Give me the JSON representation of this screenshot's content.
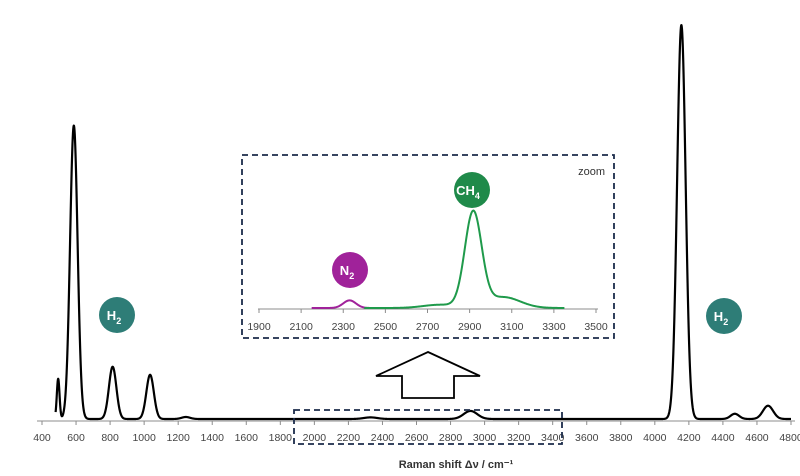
{
  "chart_data": [
    {
      "type": "line",
      "title": "",
      "xlabel": "Raman shift Δν / cm⁻¹",
      "ylabel": "",
      "xlim": [
        400,
        4800
      ],
      "xticks": [
        400,
        600,
        800,
        1000,
        1200,
        1400,
        1600,
        1800,
        2000,
        2200,
        2400,
        2600,
        2800,
        3000,
        3200,
        3400,
        3600,
        3800,
        4000,
        4200,
        4400,
        4600,
        4800
      ],
      "ylim": [
        0,
        1
      ],
      "grid": false,
      "series": [
        {
          "color": "#000000",
          "peaks": [
            {
              "x": 587,
              "y": 0.73,
              "w": 22
            },
            {
              "x": 495,
              "y": 0.1,
              "w": 8
            },
            {
              "x": 815,
              "y": 0.13,
              "w": 22
            },
            {
              "x": 1035,
              "y": 0.11,
              "w": 22
            },
            {
              "x": 1245,
              "y": 0.005,
              "w": 25
            },
            {
              "x": 2330,
              "y": 0.004,
              "w": 40
            },
            {
              "x": 2917,
              "y": 0.02,
              "w": 40
            },
            {
              "x": 4156,
              "y": 0.98,
              "w": 25
            },
            {
              "x": 4470,
              "y": 0.013,
              "w": 25
            },
            {
              "x": 4665,
              "y": 0.033,
              "w": 30
            }
          ]
        }
      ],
      "annotations": [
        {
          "label": "H",
          "sub": "2",
          "color": "#2e7d77"
        },
        {
          "label": "H",
          "sub": "2",
          "color": "#2e7d77"
        }
      ],
      "highlight_range": [
        1880,
        3520
      ]
    },
    {
      "type": "line",
      "title": "",
      "corner_label": "zoom",
      "xlim": [
        1900,
        3500
      ],
      "xticks": [
        1900,
        2100,
        2300,
        2500,
        2700,
        2900,
        3100,
        3300,
        3500
      ],
      "ylim": [
        0,
        1
      ],
      "series": [
        {
          "color": "#a0229a",
          "range": [
            2150,
            2560
          ],
          "peaks": [
            {
              "x": 2330,
              "y": 0.07,
              "w": 30
            }
          ]
        },
        {
          "color": "#1f9a4b",
          "range": [
            2400,
            3350
          ],
          "peaks": [
            {
              "x": 2917,
              "y": 0.87,
              "w": 40
            },
            {
              "x": 3060,
              "y": 0.1,
              "w": 80
            },
            {
              "x": 2760,
              "y": 0.03,
              "w": 80
            }
          ]
        }
      ],
      "annotations": [
        {
          "label": "N",
          "sub": "2",
          "color": "#a0229a"
        },
        {
          "label": "CH",
          "sub": "4",
          "color": "#1f8a4a"
        }
      ]
    }
  ]
}
